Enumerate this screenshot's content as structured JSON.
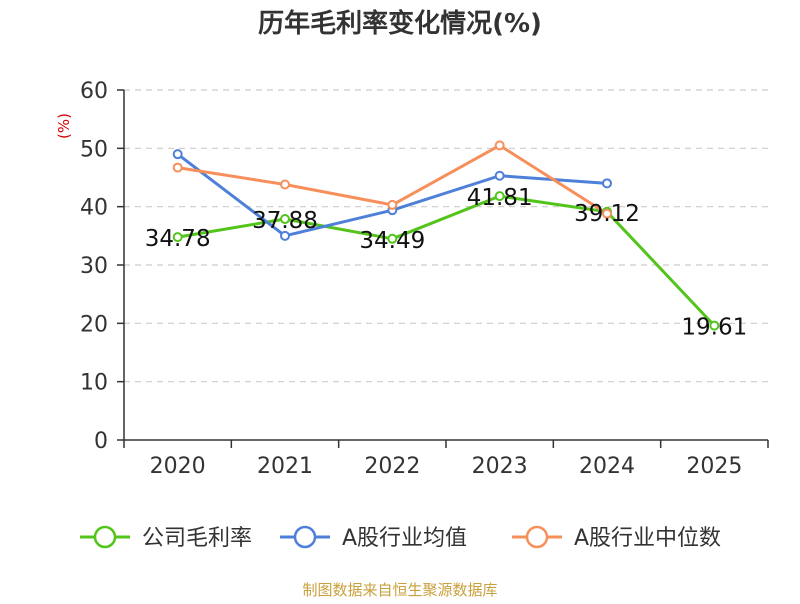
{
  "chart_data": {
    "type": "line",
    "title": "历年毛利率变化情况(%)",
    "ylabel": "(%)",
    "xlabel": "",
    "categories": [
      "2020",
      "2021",
      "2022",
      "2023",
      "2024",
      "2025"
    ],
    "ylim": [
      0,
      60
    ],
    "yticks": [
      0,
      10,
      20,
      30,
      40,
      50,
      60
    ],
    "grid": true,
    "legend_position": "bottom",
    "series": [
      {
        "name": "公司毛利率",
        "color": "#52c41a",
        "values": [
          34.78,
          37.88,
          34.49,
          41.81,
          39.12,
          19.61
        ],
        "labels": [
          "34.78",
          "37.88",
          "34.49",
          "41.81",
          "39.12",
          "19.61"
        ]
      },
      {
        "name": "A股行业均值",
        "color": "#4e7fd9",
        "values": [
          49.0,
          35.0,
          39.4,
          45.3,
          44.0,
          null
        ]
      },
      {
        "name": "A股行业中位数",
        "color": "#f78f5b",
        "values": [
          46.7,
          43.8,
          40.3,
          50.5,
          38.8,
          null
        ]
      }
    ]
  },
  "source": "制图数据来自恒生聚源数据库",
  "colors": {
    "title": "#333333",
    "axis": "#333333",
    "grid": "#cccccc",
    "ylabel": "#d40000",
    "source": "#c9a03c",
    "label": "#111111"
  }
}
